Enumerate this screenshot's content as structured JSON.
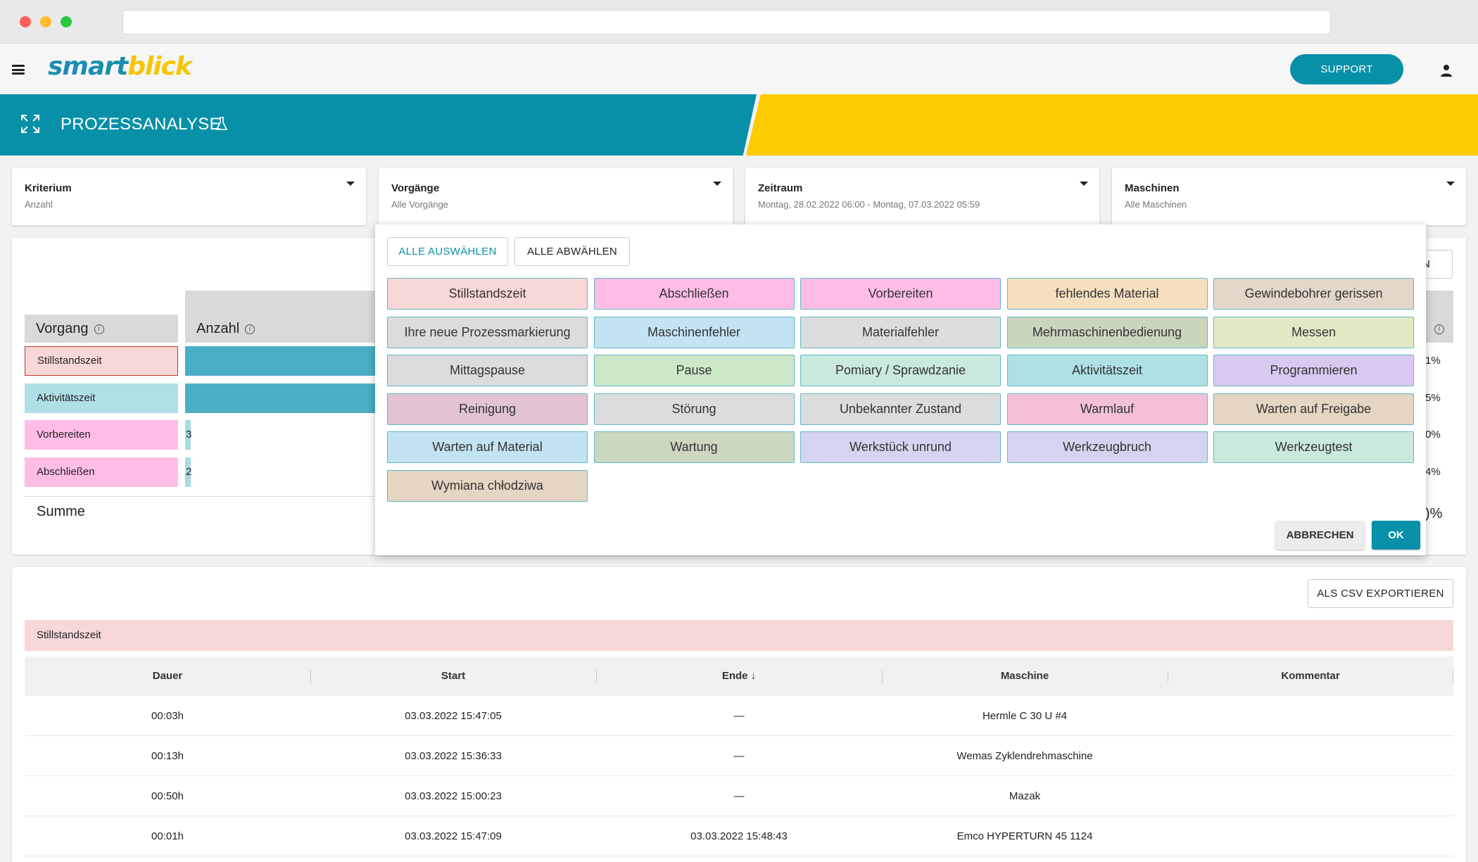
{
  "app": {
    "logo_part1": "smart",
    "logo_part2": "blick",
    "support_label": "SUPPORT",
    "page_title": "PROZESSANALYSE"
  },
  "filters": [
    {
      "label": "Kriterium",
      "value": "Anzahl"
    },
    {
      "label": "Vorgänge",
      "value": "Alle Vorgänge"
    },
    {
      "label": "Zeitraum",
      "value": "Montag, 28.02.2022 06:00 - Montag, 07.03.2022 05:59"
    },
    {
      "label": "Maschinen",
      "value": "Alle Maschinen"
    }
  ],
  "chart": {
    "col_vorgang": "Vorgang",
    "col_anzahl": "Anzahl",
    "info_glyph": "i",
    "sum_label": "Summe",
    "partial_button": "EN",
    "rows": [
      {
        "label": "Stillstandszeit",
        "pct": "1%",
        "color": "#f8d7d7"
      },
      {
        "label": "Aktivitätszeit",
        "pct": "5%",
        "color": "#aee0e6"
      },
      {
        "label": "Vorbereiten",
        "value": "3",
        "pct": "0%",
        "color": "#ffbde6"
      },
      {
        "label": "Abschließen",
        "value": "2",
        "pct": "4%",
        "color": "#ffbde6"
      }
    ],
    "sum_pct": ")%"
  },
  "panel": {
    "select_all": "ALLE AUSWÄHLEN",
    "deselect_all": "ALLE ABWÄHLEN",
    "cancel": "ABBRECHEN",
    "ok": "OK",
    "chips": [
      {
        "label": "Stillstandszeit",
        "color": "#f8d7d7"
      },
      {
        "label": "Abschließen",
        "color": "#ffbde6"
      },
      {
        "label": "Vorbereiten",
        "color": "#ffbde6"
      },
      {
        "label": "fehlendes Material",
        "color": "#f5dfbf"
      },
      {
        "label": "Gewindebohrer gerissen",
        "color": "#e3d7c9"
      },
      {
        "label": "Ihre neue Prozessmarkierung",
        "color": "#dcdcdc"
      },
      {
        "label": "Maschinenfehler",
        "color": "#c2e3f2"
      },
      {
        "label": "Materialfehler",
        "color": "#dcdcdc"
      },
      {
        "label": "Mehrmaschinenbedienung",
        "color": "#c9d6be"
      },
      {
        "label": "Messen",
        "color": "#e3e8c4"
      },
      {
        "label": "Mittagspause",
        "color": "#dcdcdc"
      },
      {
        "label": "Pause",
        "color": "#cde8c7"
      },
      {
        "label": "Pomiary / Sprawdzanie",
        "color": "#c9e9dc"
      },
      {
        "label": "Aktivitätszeit",
        "color": "#aee0e6"
      },
      {
        "label": "Programmieren",
        "color": "#d7c9ef"
      },
      {
        "label": "Reinigung",
        "color": "#e2c3d3"
      },
      {
        "label": "Störung",
        "color": "#dcdcdc"
      },
      {
        "label": "Unbekannter Zustand",
        "color": "#dcdcdc"
      },
      {
        "label": "Warmlauf",
        "color": "#f4c0d8"
      },
      {
        "label": "Warten auf Freigabe",
        "color": "#e5d5c3"
      },
      {
        "label": "Warten auf Material",
        "color": "#c2e3f2"
      },
      {
        "label": "Wartung",
        "color": "#cbd7bf"
      },
      {
        "label": "Werkstück unrund",
        "color": "#d5d4f0"
      },
      {
        "label": "Werkzeugbruch",
        "color": "#d5d4f0"
      },
      {
        "label": "Werkzeugtest",
        "color": "#c9e9dc"
      },
      {
        "label": "Wymiana chłodziwa",
        "color": "#e5d5c3"
      }
    ]
  },
  "table": {
    "csv_button": "ALS CSV EXPORTIEREN",
    "group": "Stillstandszeit",
    "columns": [
      "Dauer",
      "Start",
      "Ende",
      "Maschine",
      "Kommentar"
    ],
    "sort_glyph": "↓",
    "rows": [
      [
        "00:03h",
        "03.03.2022 15:47:05",
        "—",
        "Hermle C 30 U #4",
        ""
      ],
      [
        "00:13h",
        "03.03.2022 15:36:33",
        "—",
        "Wemas Zyklendrehmaschine",
        ""
      ],
      [
        "00:50h",
        "03.03.2022 15:00:23",
        "—",
        "Mazak",
        ""
      ],
      [
        "00:01h",
        "03.03.2022 15:47:09",
        "03.03.2022 15:48:43",
        "Emco HYPERTURN 45 1124",
        ""
      ]
    ]
  },
  "colors": {
    "brand_teal": "#0890a8",
    "brand_yellow": "#fccb00",
    "bar": "#4aaec4"
  }
}
